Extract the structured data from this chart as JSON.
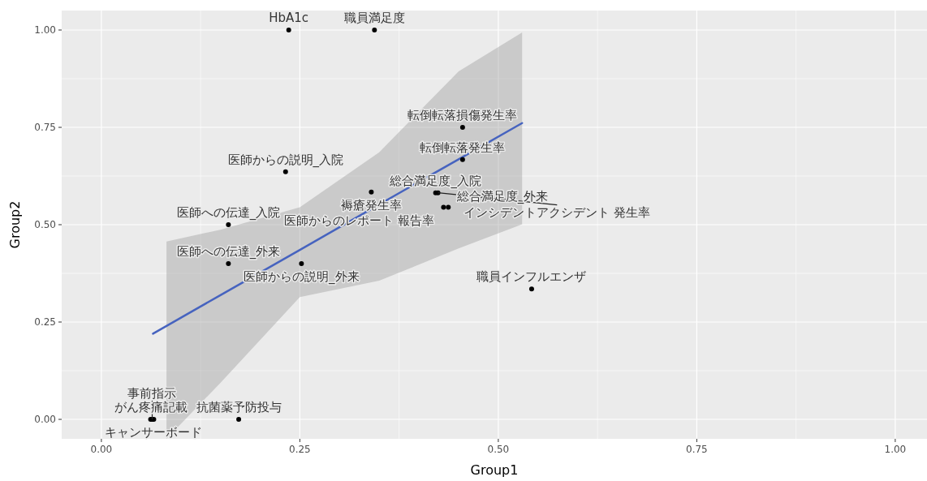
{
  "chart_data": {
    "type": "scatter",
    "xlabel": "Group1",
    "ylabel": "Group2",
    "xlim": [
      -0.05,
      1.04
    ],
    "ylim": [
      -0.05,
      1.05
    ],
    "xticks": [
      {
        "value": 0,
        "label": "0.00"
      },
      {
        "value": 0.25,
        "label": "0.25"
      },
      {
        "value": 0.5,
        "label": "0.50"
      },
      {
        "value": 0.75,
        "label": "0.75"
      },
      {
        "value": 1,
        "label": "1.00"
      }
    ],
    "yticks": [
      {
        "value": 0,
        "label": "0.00"
      },
      {
        "value": 0.25,
        "label": "0.25"
      },
      {
        "value": 0.5,
        "label": "0.50"
      },
      {
        "value": 0.75,
        "label": "0.75"
      },
      {
        "value": 1,
        "label": "1.00"
      }
    ],
    "grid": true,
    "marker": "circle",
    "series": [
      {
        "type": "line",
        "marker": "none",
        "color": "#4663bf",
        "x": [
          0.065,
          0.082,
          0.15,
          0.25,
          0.35,
          0.45,
          0.53
        ],
        "values": [
          0.22,
          0.24,
          0.319,
          0.435,
          0.552,
          0.668,
          0.761
        ],
        "lower": [
          null,
          -0.05,
          0.094,
          0.314,
          0.356,
          0.439,
          0.501
        ],
        "upper": [
          null,
          0.457,
          0.487,
          0.545,
          0.686,
          0.894,
          0.994
        ]
      },
      {
        "color": "#000000",
        "x": [
          0.236,
          0.344,
          0.455,
          0.455,
          0.232,
          0.34,
          0.421,
          0.424,
          0.431,
          0.437,
          0.16,
          0.16,
          0.252,
          0.542,
          0.062,
          0.066,
          0.064,
          0.173
        ],
        "values": [
          1,
          1,
          0.75,
          0.667,
          0.636,
          0.584,
          0.582,
          0.582,
          0.545,
          0.545,
          0.5,
          0.4,
          0.4,
          0.335,
          0,
          0,
          0,
          0
        ]
      }
    ],
    "annotations": [
      {
        "text": "HbA1c",
        "x": 0.236,
        "y": 1
      },
      {
        "text": "職員満足度",
        "x": 0.344,
        "y": 1
      },
      {
        "text": "転倒転落損傷発生率",
        "x": 0.455,
        "y": 0.75
      },
      {
        "text": "転倒転落発生率",
        "x": 0.455,
        "y": 0.667
      },
      {
        "text": "医師からの説明_入院",
        "x": 0.232,
        "y": 0.636
      },
      {
        "text": "総合満足度_入院",
        "x": 0.421,
        "y": 0.582
      },
      {
        "text": "褥瘡発生率",
        "x": 0.34,
        "y": 0.584
      },
      {
        "text": "インシデントアクシデント 発生率",
        "x": 0.424,
        "y": 0.582
      },
      {
        "text": "医師への伝達_入院",
        "x": 0.16,
        "y": 0.5
      },
      {
        "text": "総合満足度_外来",
        "x": 0.437,
        "y": 0.545
      },
      {
        "text": "医師からのレポート 報告率",
        "x": 0.431,
        "y": 0.545
      },
      {
        "text": "医師への伝達_外来",
        "x": 0.16,
        "y": 0.4
      },
      {
        "text": "医師からの説明_外来",
        "x": 0.252,
        "y": 0.4
      },
      {
        "text": "職員インフルエンザ",
        "x": 0.542,
        "y": 0.335
      },
      {
        "text": "がん疼痛記載",
        "x": 0.062,
        "y": 0
      },
      {
        "text": "キャンサーボード",
        "x": 0.066,
        "y": 0
      },
      {
        "text": "事前指示",
        "x": 0.064,
        "y": 0
      },
      {
        "text": "抗菌薬予防投与",
        "x": 0.173,
        "y": 0
      }
    ]
  }
}
